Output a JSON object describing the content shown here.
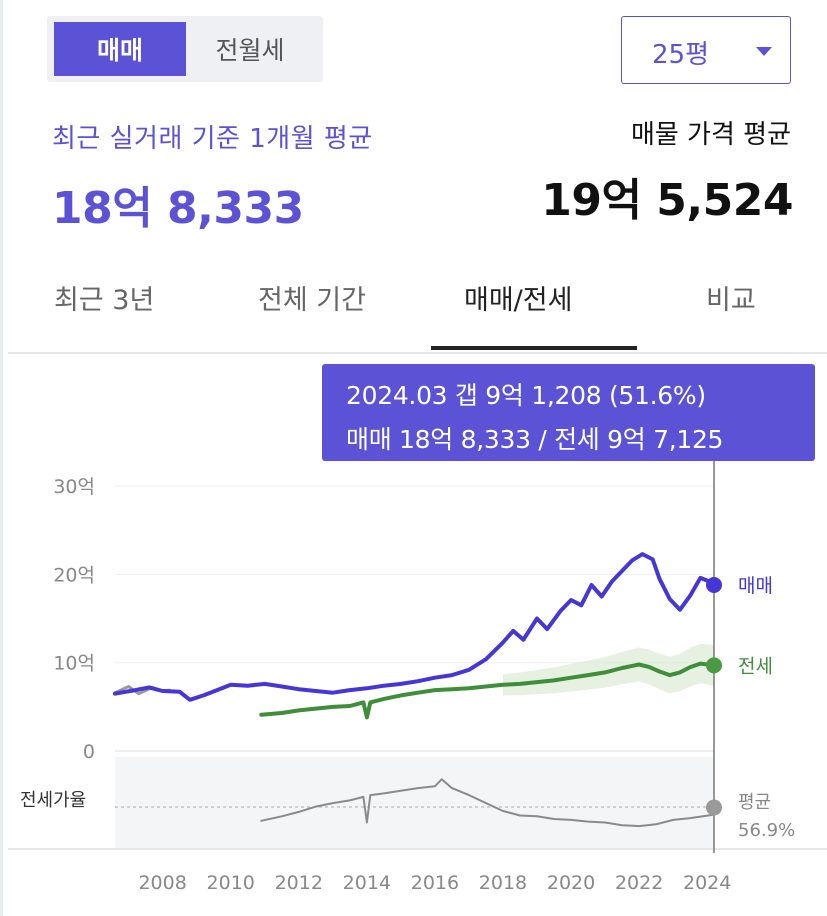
{
  "toggle": {
    "sale": "매매",
    "rent": "전월세"
  },
  "size_select": {
    "value": "25평"
  },
  "recent": {
    "label": "최근 실거래 기준 1개월 평균",
    "price": "18억 8,333"
  },
  "listing": {
    "label": "매물 가격 평균",
    "price": "19억 5,524"
  },
  "tabs": [
    "최근 3년",
    "전체 기간",
    "매매/전세",
    "비교"
  ],
  "tooltip": {
    "line1": "2024.03  갭 9억 1,208 (51.6%)",
    "line2": "매매 18억 8,333 / 전세 9억 7,125"
  },
  "colors": {
    "accent": "#5b52d6",
    "sale": "#4536d6",
    "rent": "#3f8e3a",
    "ratio": "#8a8a8a",
    "older": "#999999"
  },
  "chart_data": {
    "type": "line",
    "x_ticks": [
      "2008",
      "2010",
      "2012",
      "2014",
      "2016",
      "2018",
      "2020",
      "2022",
      "2024"
    ],
    "y_ticks": [
      "30억",
      "20억",
      "10억",
      "0"
    ],
    "ylim": [
      0,
      30
    ],
    "xlim": [
      2006.6,
      2024.2
    ],
    "series": [
      {
        "name": "매매",
        "points": [
          [
            2006.6,
            6.5
          ],
          [
            2007.2,
            6.9
          ],
          [
            2007.6,
            7.2
          ],
          [
            2008.0,
            6.8
          ],
          [
            2008.5,
            6.7
          ],
          [
            2008.8,
            5.8
          ],
          [
            2009.2,
            6.3
          ],
          [
            2009.6,
            6.9
          ],
          [
            2010.0,
            7.5
          ],
          [
            2010.5,
            7.4
          ],
          [
            2011.0,
            7.6
          ],
          [
            2011.5,
            7.3
          ],
          [
            2012.0,
            7.0
          ],
          [
            2012.5,
            6.8
          ],
          [
            2013.0,
            6.6
          ],
          [
            2013.5,
            6.9
          ],
          [
            2014.0,
            7.1
          ],
          [
            2014.5,
            7.4
          ],
          [
            2015.0,
            7.6
          ],
          [
            2015.5,
            7.9
          ],
          [
            2016.0,
            8.3
          ],
          [
            2016.5,
            8.6
          ],
          [
            2017.0,
            9.2
          ],
          [
            2017.5,
            10.4
          ],
          [
            2018.0,
            12.3
          ],
          [
            2018.3,
            13.6
          ],
          [
            2018.6,
            12.6
          ],
          [
            2019.0,
            15.0
          ],
          [
            2019.3,
            13.8
          ],
          [
            2019.7,
            15.9
          ],
          [
            2020.0,
            17.1
          ],
          [
            2020.3,
            16.5
          ],
          [
            2020.6,
            18.8
          ],
          [
            2020.9,
            17.5
          ],
          [
            2021.2,
            19.2
          ],
          [
            2021.5,
            20.4
          ],
          [
            2021.8,
            21.6
          ],
          [
            2022.1,
            22.3
          ],
          [
            2022.4,
            21.7
          ],
          [
            2022.6,
            19.5
          ],
          [
            2022.9,
            17.2
          ],
          [
            2023.2,
            16.0
          ],
          [
            2023.5,
            17.6
          ],
          [
            2023.8,
            19.6
          ],
          [
            2024.0,
            19.3
          ],
          [
            2024.2,
            18.8
          ]
        ]
      },
      {
        "name": "전세",
        "points": [
          [
            2010.9,
            4.1
          ],
          [
            2011.5,
            4.3
          ],
          [
            2012.0,
            4.6
          ],
          [
            2012.5,
            4.8
          ],
          [
            2013.0,
            5.0
          ],
          [
            2013.5,
            5.1
          ],
          [
            2013.9,
            5.5
          ],
          [
            2014.0,
            3.8
          ],
          [
            2014.1,
            5.5
          ],
          [
            2014.5,
            5.9
          ],
          [
            2015.0,
            6.3
          ],
          [
            2015.5,
            6.6
          ],
          [
            2016.0,
            6.9
          ],
          [
            2016.5,
            7.0
          ],
          [
            2017.0,
            7.1
          ],
          [
            2017.5,
            7.3
          ],
          [
            2018.0,
            7.5
          ],
          [
            2018.5,
            7.6
          ],
          [
            2019.0,
            7.8
          ],
          [
            2019.5,
            8.0
          ],
          [
            2020.0,
            8.3
          ],
          [
            2020.5,
            8.6
          ],
          [
            2021.0,
            8.9
          ],
          [
            2021.5,
            9.4
          ],
          [
            2022.0,
            9.8
          ],
          [
            2022.3,
            9.5
          ],
          [
            2022.6,
            9.0
          ],
          [
            2022.9,
            8.6
          ],
          [
            2023.2,
            8.9
          ],
          [
            2023.5,
            9.5
          ],
          [
            2023.8,
            9.9
          ],
          [
            2024.2,
            9.7
          ]
        ]
      },
      {
        "name": "전세가율",
        "points": [
          [
            2010.9,
            -7.9
          ],
          [
            2011.5,
            -7.4
          ],
          [
            2012.0,
            -6.9
          ],
          [
            2012.5,
            -6.3
          ],
          [
            2013.0,
            -5.9
          ],
          [
            2013.5,
            -5.6
          ],
          [
            2013.9,
            -5.2
          ],
          [
            2014.0,
            -8.1
          ],
          [
            2014.1,
            -5.0
          ],
          [
            2014.5,
            -4.8
          ],
          [
            2015.0,
            -4.5
          ],
          [
            2015.5,
            -4.2
          ],
          [
            2016.0,
            -4.0
          ],
          [
            2016.2,
            -3.2
          ],
          [
            2016.5,
            -4.2
          ],
          [
            2017.0,
            -5.0
          ],
          [
            2017.5,
            -5.9
          ],
          [
            2018.0,
            -6.8
          ],
          [
            2018.5,
            -7.3
          ],
          [
            2019.0,
            -7.4
          ],
          [
            2019.5,
            -7.7
          ],
          [
            2020.0,
            -7.8
          ],
          [
            2020.5,
            -8.0
          ],
          [
            2021.0,
            -8.1
          ],
          [
            2021.5,
            -8.4
          ],
          [
            2022.0,
            -8.5
          ],
          [
            2022.5,
            -8.3
          ],
          [
            2023.0,
            -7.8
          ],
          [
            2023.5,
            -7.6
          ],
          [
            2024.2,
            -7.2
          ]
        ]
      },
      {
        "points": [
          [
            2006.6,
            6.6
          ],
          [
            2007.0,
            7.3
          ],
          [
            2007.3,
            6.5
          ],
          [
            2007.7,
            7.2
          ],
          [
            2008.0,
            6.8
          ],
          [
            2008.2,
            6.9
          ]
        ]
      }
    ],
    "end_labels": {
      "sale": "매매",
      "rent": "전세"
    },
    "ratio": {
      "label": "전세가율",
      "avg_label": "평균",
      "avg_value": "56.9%"
    }
  }
}
